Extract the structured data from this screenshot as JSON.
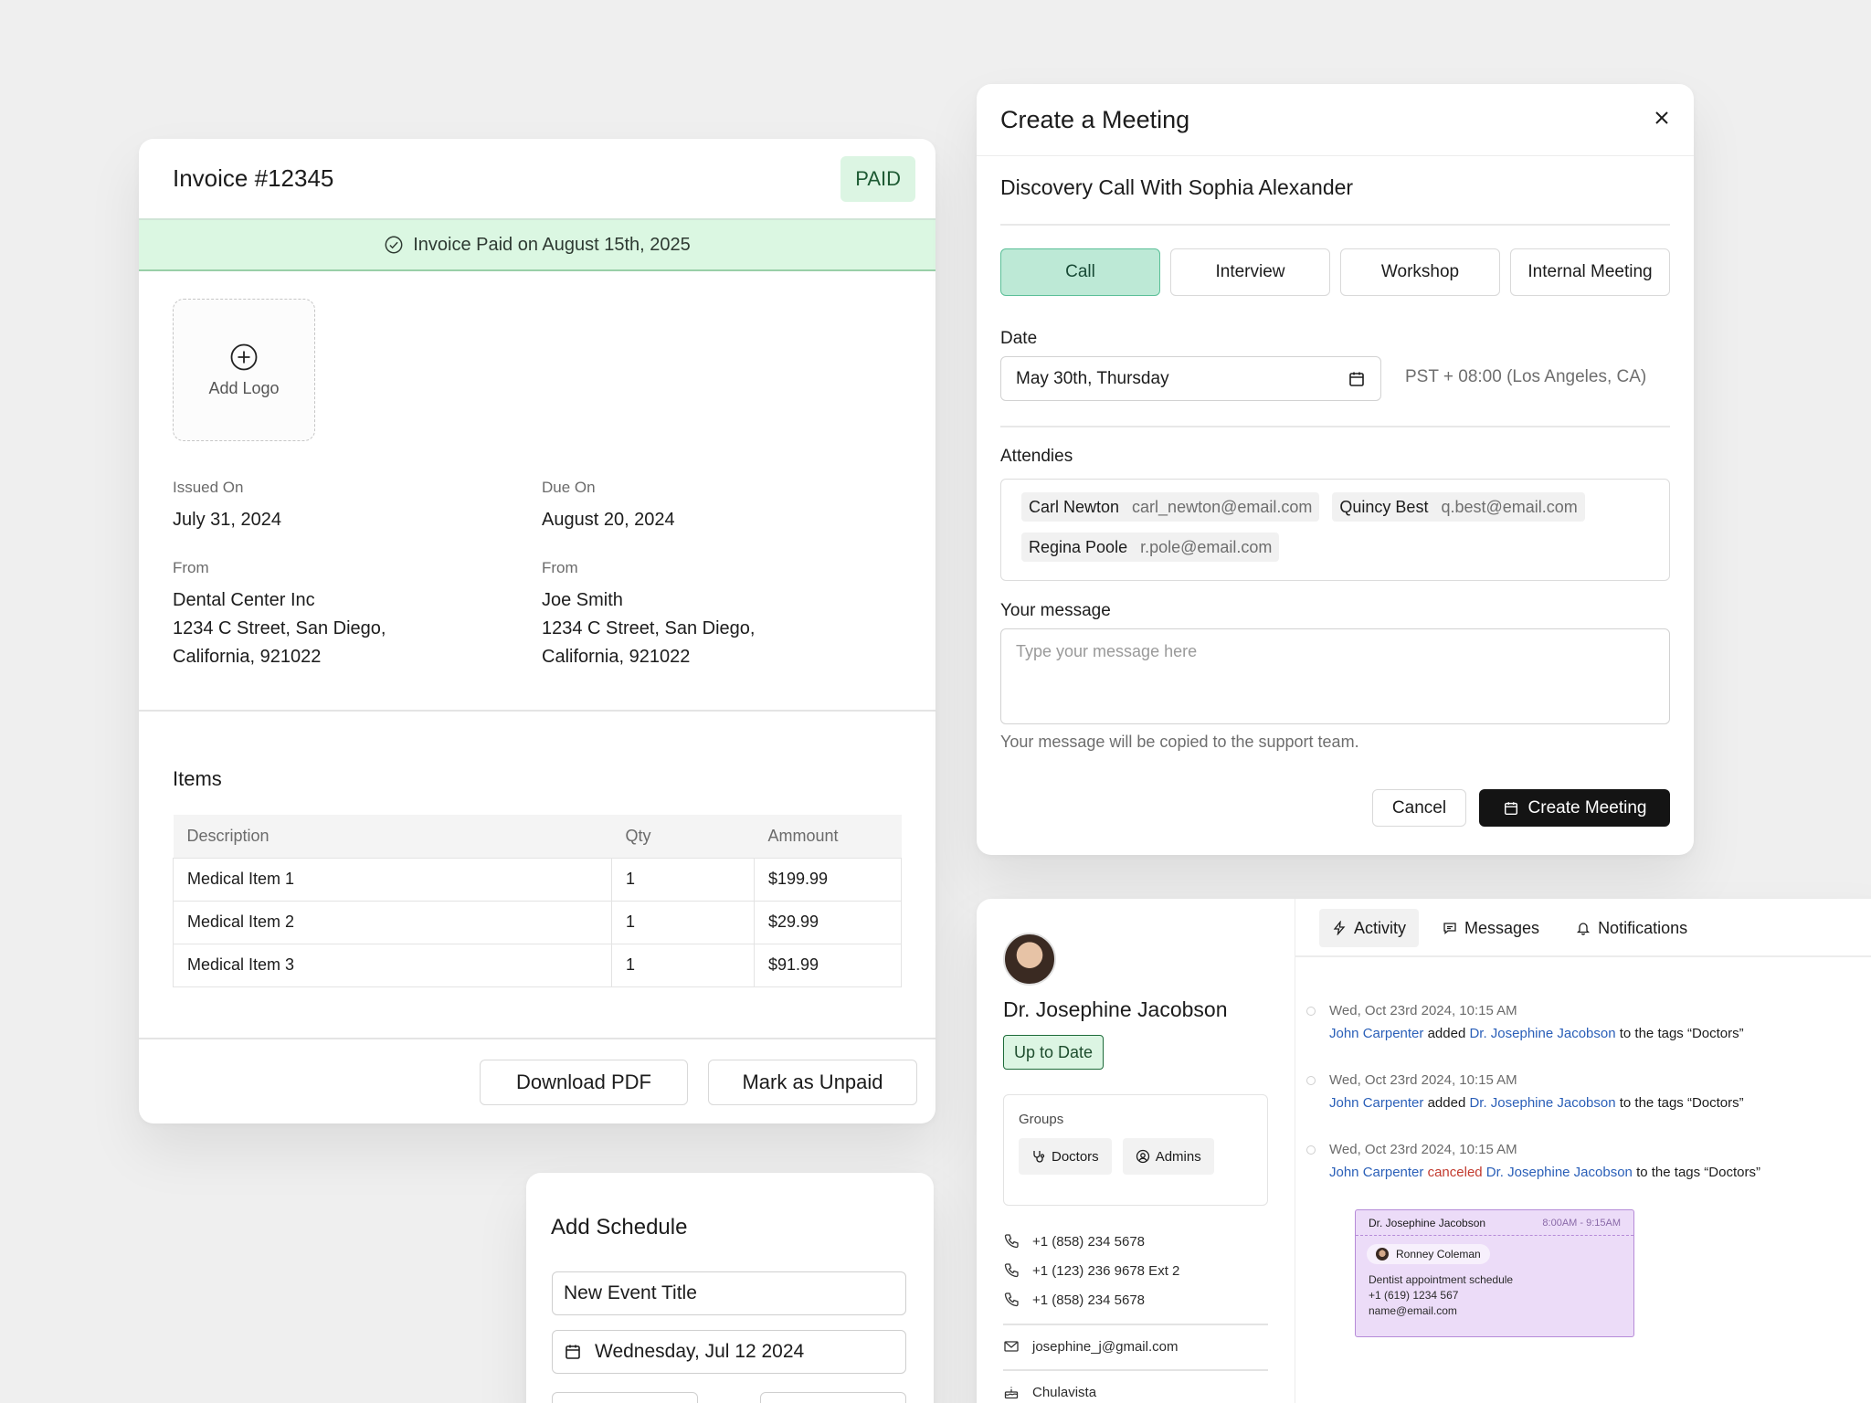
{
  "invoice": {
    "title": "Invoice #12345",
    "status": "PAID",
    "banner": "Invoice Paid on August 15th, 2025",
    "add_logo": "Add Logo",
    "issued_label": "Issued On",
    "issued_value": "July 31, 2024",
    "due_label": "Due On",
    "due_value": "August 20, 2024",
    "from_left": {
      "label": "From",
      "name": "Dental Center Inc",
      "line1": "1234 C Street, San Diego,",
      "line2": "California, 921022"
    },
    "from_right": {
      "label": "From",
      "name": "Joe Smith",
      "line1": "1234 C Street, San Diego,",
      "line2": "California, 921022"
    },
    "items_title": "Items",
    "columns": [
      "Description",
      "Qty",
      "Ammount"
    ],
    "rows": [
      [
        "Medical Item 1",
        "1",
        "$199.99"
      ],
      [
        "Medical Item 2",
        "1",
        "$29.99"
      ],
      [
        "Medical Item 3",
        "1",
        "$91.99"
      ]
    ],
    "download_label": "Download PDF",
    "unpaid_label": "Mark as Unpaid",
    "colors": {
      "paid_bg": "#dcf5e3",
      "banner_bg": "#dbf7e2"
    }
  },
  "meeting": {
    "title": "Create a Meeting",
    "subject": "Discovery Call With Sophia Alexander",
    "types": [
      "Call",
      "Interview",
      "Workshop",
      "Internal Meeting"
    ],
    "active_type": "Call",
    "date_label": "Date",
    "date_value": "May 30th, Thursday",
    "timezone": "PST + 08:00 (Los Angeles, CA)",
    "attendees_label": "Attendies",
    "attendees": [
      {
        "name": "Carl Newton",
        "email": "carl_newton@email.com"
      },
      {
        "name": "Quincy Best",
        "email": "q.best@email.com"
      },
      {
        "name": "Regina Poole",
        "email": "r.pole@email.com"
      }
    ],
    "message_label": "Your message",
    "message_placeholder": "Type your message here",
    "message_help": "Your message will be copied to the support team.",
    "cancel_label": "Cancel",
    "create_label": "Create Meeting",
    "colors": {
      "active_type": "#bde9d6",
      "primary": "#141414"
    }
  },
  "schedule": {
    "title": "Add Schedule",
    "event_title": "New Event Title",
    "date": "Wednesday, Jul 12 2024"
  },
  "profile": {
    "name": "Dr. Josephine Jacobson",
    "status": "Up to Date",
    "groups_label": "Groups",
    "groups": [
      "Doctors",
      "Admins"
    ],
    "phones": [
      "+1 (858) 234 5678",
      "+1 (123) 236 9678 Ext 2",
      "+1 (858) 234 5678"
    ],
    "email": "josephine_j@gmail.com",
    "location": "Chulavista",
    "tabs": [
      "Activity",
      "Messages",
      "Notifications"
    ],
    "activity": [
      {
        "time": "Wed, Oct 23rd 2024, 10:15 AM",
        "actor": "John Carpenter",
        "verb": "added",
        "target": "Dr. Josephine Jacobson",
        "rest": "to the tags “Doctors”"
      },
      {
        "time": "Wed, Oct 23rd 2024, 10:15 AM",
        "actor": "John Carpenter",
        "verb": "added",
        "target": "Dr. Josephine Jacobson",
        "rest": "to the tags “Doctors”"
      },
      {
        "time": "Wed, Oct 23rd 2024, 10:15 AM",
        "actor": "John Carpenter",
        "verb": "canceled",
        "target": "Dr. Josephine Jacobson",
        "rest": "to the tags “Doctors”"
      }
    ],
    "appointment": {
      "name": "Dr. Josephine Jacobson",
      "time": "8:00AM - 9:15AM",
      "patient": "Ronney Coleman",
      "desc": "Dentist appointment schedule",
      "phone": "+1 (619) 1234 567",
      "email": "name@email.com"
    },
    "colors": {
      "link": "#2a5fb8",
      "cancel": "#c23a2e",
      "appt_bg": "#ecdcf8"
    }
  }
}
